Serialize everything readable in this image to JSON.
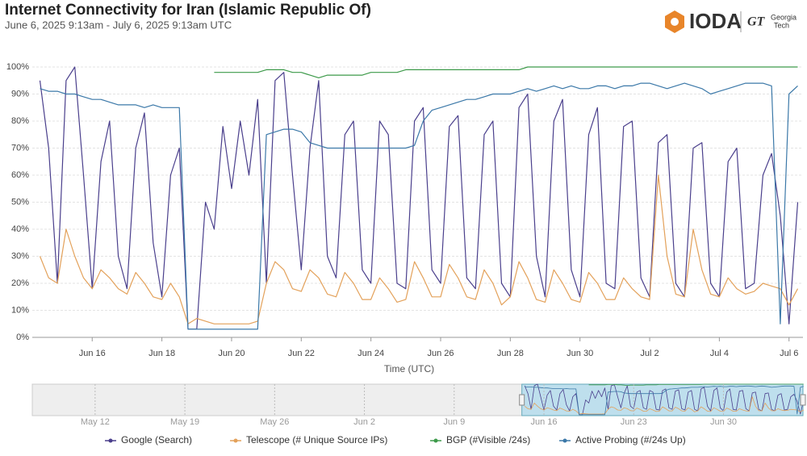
{
  "chart_data": {
    "type": "line",
    "title": "Internet Connectivity for Iran (Islamic Republic Of)",
    "subtitle": "June 6, 2025 9:13am - July 6, 2025 9:13am UTC",
    "x_label": "Time (UTC)",
    "x": [
      14.5,
      14.75,
      15,
      15.25,
      15.5,
      15.75,
      16,
      16.25,
      16.5,
      16.75,
      17,
      17.25,
      17.5,
      17.75,
      18,
      18.25,
      18.5,
      18.75,
      19,
      19.25,
      19.5,
      19.75,
      20,
      20.25,
      20.5,
      20.75,
      21,
      21.25,
      21.5,
      21.75,
      22,
      22.25,
      22.5,
      22.75,
      23,
      23.25,
      23.5,
      23.75,
      24,
      24.25,
      24.5,
      24.75,
      25,
      25.25,
      25.5,
      25.75,
      26,
      26.25,
      26.5,
      26.75,
      27,
      27.25,
      27.5,
      27.75,
      28,
      28.25,
      28.5,
      28.75,
      29,
      29.25,
      29.5,
      29.75,
      30,
      30.25,
      30.5,
      30.75,
      31,
      31.25,
      31.5,
      31.75,
      32,
      32.25,
      32.5,
      32.75,
      33,
      33.25,
      33.5,
      33.75,
      34,
      34.25,
      34.5,
      34.75,
      35,
      35.25,
      35.5,
      35.75,
      36,
      36.25
    ],
    "series": [
      {
        "name": "Google (Search)",
        "color": "#4a3f8c",
        "values": [
          95,
          70,
          20,
          95,
          100,
          60,
          18,
          65,
          80,
          30,
          18,
          70,
          83,
          35,
          15,
          60,
          70,
          3,
          3,
          50,
          40,
          78,
          55,
          80,
          60,
          88,
          20,
          95,
          98,
          60,
          25,
          70,
          95,
          30,
          22,
          75,
          80,
          25,
          20,
          80,
          75,
          20,
          18,
          80,
          85,
          25,
          20,
          78,
          82,
          22,
          18,
          75,
          80,
          20,
          15,
          85,
          90,
          30,
          15,
          80,
          88,
          25,
          15,
          75,
          85,
          20,
          18,
          78,
          80,
          22,
          15,
          72,
          75,
          20,
          15,
          70,
          72,
          20,
          15,
          65,
          70,
          18,
          20,
          60,
          68,
          45,
          5,
          50
        ]
      },
      {
        "name": "Telescope (# Unique Source IPs)",
        "color": "#e3a15a",
        "values": [
          30,
          22,
          20,
          40,
          30,
          22,
          18,
          25,
          22,
          18,
          16,
          24,
          20,
          15,
          14,
          20,
          15,
          5,
          7,
          6,
          5,
          5,
          5,
          5,
          5,
          6,
          20,
          28,
          25,
          18,
          17,
          25,
          22,
          16,
          15,
          24,
          20,
          14,
          14,
          22,
          18,
          13,
          14,
          28,
          22,
          15,
          15,
          27,
          22,
          15,
          14,
          25,
          20,
          12,
          15,
          28,
          22,
          14,
          13,
          25,
          20,
          14,
          13,
          24,
          20,
          14,
          14,
          22,
          18,
          15,
          14,
          60,
          30,
          16,
          15,
          40,
          25,
          16,
          15,
          22,
          18,
          16,
          17,
          20,
          19,
          18,
          12,
          18
        ]
      },
      {
        "name": "BGP (#Visible /24s)",
        "color": "#3d9a4a",
        "values": [
          null,
          null,
          null,
          null,
          null,
          null,
          null,
          null,
          null,
          null,
          null,
          null,
          null,
          null,
          null,
          null,
          null,
          null,
          null,
          null,
          98,
          98,
          98,
          98,
          98,
          98,
          99,
          99,
          99,
          98,
          98,
          97,
          96,
          97,
          97,
          97,
          97,
          97,
          98,
          98,
          98,
          98,
          99,
          99,
          99,
          99,
          99,
          99,
          99,
          99,
          99,
          99,
          99,
          99,
          99,
          99,
          100,
          100,
          100,
          100,
          100,
          100,
          100,
          100,
          100,
          100,
          100,
          100,
          100,
          100,
          100,
          100,
          100,
          100,
          100,
          100,
          100,
          100,
          100,
          100,
          100,
          100,
          100,
          100,
          100,
          100,
          100,
          100
        ]
      },
      {
        "name": "Active Probing (#/24s Up)",
        "color": "#3b78a8",
        "values": [
          92,
          91,
          91,
          90,
          90,
          89,
          88,
          88,
          87,
          86,
          86,
          86,
          85,
          86,
          85,
          85,
          85,
          3,
          3,
          3,
          3,
          3,
          3,
          3,
          3,
          3,
          75,
          76,
          77,
          77,
          76,
          72,
          71,
          70,
          70,
          70,
          70,
          70,
          70,
          70,
          70,
          70,
          70,
          71,
          80,
          84,
          85,
          86,
          87,
          88,
          88,
          89,
          90,
          90,
          90,
          91,
          92,
          91,
          92,
          93,
          92,
          93,
          92,
          92,
          93,
          93,
          92,
          93,
          93,
          94,
          94,
          93,
          92,
          93,
          94,
          93,
          92,
          90,
          91,
          92,
          93,
          94,
          94,
          94,
          93,
          5,
          90,
          93
        ]
      }
    ],
    "xlim": [
      14.28,
      36.4
    ],
    "xticks": [
      {
        "value": 16,
        "label": "Jun 16"
      },
      {
        "value": 18,
        "label": "Jun 18"
      },
      {
        "value": 20,
        "label": "Jun 20"
      },
      {
        "value": 22,
        "label": "Jun 22"
      },
      {
        "value": 24,
        "label": "Jun 24"
      },
      {
        "value": 26,
        "label": "Jun 26"
      },
      {
        "value": 28,
        "label": "Jun 28"
      },
      {
        "value": 30,
        "label": "Jun 30"
      },
      {
        "value": 32,
        "label": "Jul 2"
      },
      {
        "value": 34,
        "label": "Jul 4"
      },
      {
        "value": 36,
        "label": "Jul 6"
      }
    ],
    "ylim": [
      0,
      100
    ],
    "yticks": [
      {
        "value": 0,
        "label": "0%"
      },
      {
        "value": 10,
        "label": "10%"
      },
      {
        "value": 20,
        "label": "20%"
      },
      {
        "value": 30,
        "label": "30%"
      },
      {
        "value": 40,
        "label": "40%"
      },
      {
        "value": 50,
        "label": "50%"
      },
      {
        "value": 60,
        "label": "60%"
      },
      {
        "value": 70,
        "label": "70%"
      },
      {
        "value": 80,
        "label": "80%"
      },
      {
        "value": 90,
        "label": "90%"
      },
      {
        "value": 100,
        "label": "100%"
      }
    ],
    "grid": true,
    "legend": "bottom",
    "navigator": {
      "xlim": [
        -23.9,
        36.2
      ],
      "xticks": [
        {
          "value": -19,
          "label": "May 12"
        },
        {
          "value": -12,
          "label": "May 19"
        },
        {
          "value": -5,
          "label": "May 26"
        },
        {
          "value": 2,
          "label": "Jun 2"
        },
        {
          "value": 9,
          "label": "Jun 9"
        },
        {
          "value": 16,
          "label": "Jun 16"
        },
        {
          "value": 23,
          "label": "Jun 23"
        },
        {
          "value": 30,
          "label": "Jun 30"
        }
      ]
    }
  },
  "logo": {
    "name": "IODA",
    "partner_mark": "GT",
    "partner": [
      "Georgia",
      "Tech"
    ]
  }
}
